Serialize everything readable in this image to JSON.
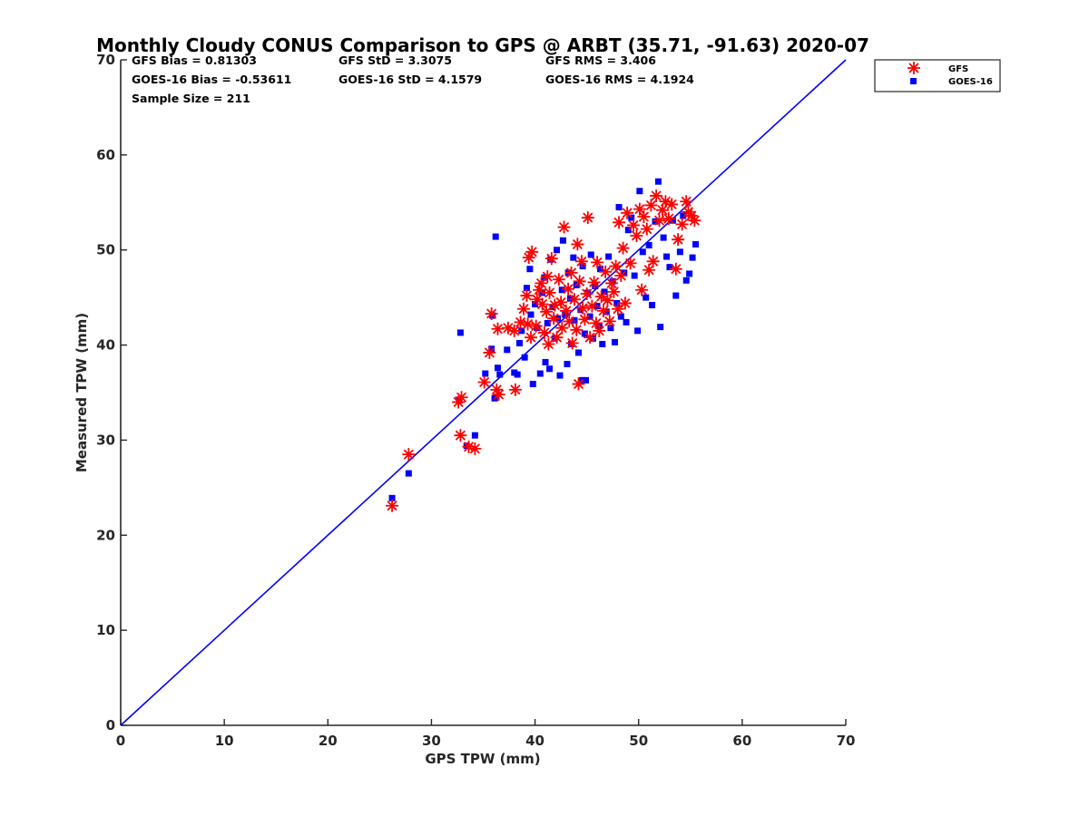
{
  "chart_data": {
    "type": "scatter",
    "title": "Monthly Cloudy CONUS Comparison to GPS @ ARBT (35.71, -91.63) 2020-07",
    "xlabel": "GPS TPW (mm)",
    "ylabel": "Measured TPW (mm)",
    "xlim": [
      0,
      70
    ],
    "ylim": [
      0,
      70
    ],
    "xticks": [
      "0",
      "10",
      "20",
      "30",
      "40",
      "50",
      "60",
      "70"
    ],
    "yticks": [
      "0",
      "10",
      "20",
      "30",
      "40",
      "50",
      "60",
      "70"
    ],
    "grid": false,
    "legend_position": "top-right, outside plot",
    "stats": {
      "gfs_bias": "GFS Bias = 0.81303",
      "gfs_std": "GFS StD = 3.3075",
      "gfs_rms": "GFS RMS = 3.406",
      "goes_bias": "GOES-16 Bias = -0.53611",
      "goes_std": "GOES-16 StD = 4.1579",
      "goes_rms": "GOES-16 RMS = 4.1924",
      "sample_size": "Sample Size = 211"
    },
    "reference_line": {
      "x": [
        0,
        70
      ],
      "y": [
        0,
        70
      ],
      "color": "#0000ff"
    },
    "series": [
      {
        "name": "GFS",
        "marker": "asterisk",
        "color": "#ff0000",
        "points": [
          [
            26.2,
            23.1
          ],
          [
            27.8,
            28.5
          ],
          [
            32.6,
            34.0
          ],
          [
            32.9,
            34.5
          ],
          [
            32.8,
            30.5
          ],
          [
            34.2,
            29.1
          ],
          [
            33.6,
            29.3
          ],
          [
            35.1,
            36.1
          ],
          [
            35.6,
            39.2
          ],
          [
            35.8,
            43.3
          ],
          [
            36.3,
            35.3
          ],
          [
            36.5,
            34.8
          ],
          [
            36.4,
            41.7
          ],
          [
            37.4,
            41.8
          ],
          [
            38.1,
            35.3
          ],
          [
            38.0,
            41.5
          ],
          [
            38.6,
            42.4
          ],
          [
            38.9,
            43.8
          ],
          [
            39.2,
            45.2
          ],
          [
            39.4,
            49.2
          ],
          [
            39.7,
            49.8
          ],
          [
            39.3,
            42.2
          ],
          [
            39.6,
            40.8
          ],
          [
            40.2,
            44.8
          ],
          [
            40.1,
            42.0
          ],
          [
            40.4,
            45.8
          ],
          [
            40.6,
            46.5
          ],
          [
            40.7,
            44.3
          ],
          [
            40.9,
            41.3
          ],
          [
            41.1,
            43.5
          ],
          [
            41.2,
            47.2
          ],
          [
            41.4,
            45.5
          ],
          [
            41.3,
            40.1
          ],
          [
            41.6,
            49.1
          ],
          [
            41.8,
            42.8
          ],
          [
            41.9,
            44.2
          ],
          [
            42.1,
            40.8
          ],
          [
            42.3,
            46.9
          ],
          [
            42.5,
            44.5
          ],
          [
            42.6,
            41.8
          ],
          [
            42.8,
            52.4
          ],
          [
            43.0,
            43.6
          ],
          [
            43.2,
            45.9
          ],
          [
            43.3,
            42.5
          ],
          [
            43.5,
            47.6
          ],
          [
            43.6,
            40.2
          ],
          [
            43.8,
            44.8
          ],
          [
            44.0,
            41.6
          ],
          [
            44.1,
            50.6
          ],
          [
            44.3,
            46.7
          ],
          [
            44.2,
            35.9
          ],
          [
            44.5,
            48.8
          ],
          [
            44.6,
            43.9
          ],
          [
            44.8,
            42.7
          ],
          [
            45.0,
            45.4
          ],
          [
            45.1,
            53.4
          ],
          [
            45.3,
            40.8
          ],
          [
            45.5,
            44.1
          ],
          [
            45.7,
            46.6
          ],
          [
            45.9,
            42.3
          ],
          [
            46.0,
            48.7
          ],
          [
            46.2,
            41.5
          ],
          [
            46.4,
            45.1
          ],
          [
            46.6,
            43.6
          ],
          [
            46.8,
            47.7
          ],
          [
            47.0,
            44.7
          ],
          [
            47.2,
            42.5
          ],
          [
            47.4,
            46.5
          ],
          [
            47.6,
            45.6
          ],
          [
            47.8,
            48.3
          ],
          [
            48.0,
            43.8
          ],
          [
            48.1,
            52.9
          ],
          [
            48.3,
            47.3
          ],
          [
            48.5,
            50.2
          ],
          [
            48.7,
            44.4
          ],
          [
            48.9,
            53.9
          ],
          [
            49.2,
            48.6
          ],
          [
            49.5,
            52.6
          ],
          [
            49.8,
            51.5
          ],
          [
            50.1,
            54.3
          ],
          [
            50.3,
            45.8
          ],
          [
            50.5,
            53.5
          ],
          [
            50.8,
            52.2
          ],
          [
            51.0,
            47.9
          ],
          [
            51.2,
            54.7
          ],
          [
            51.4,
            48.8
          ],
          [
            51.7,
            55.7
          ],
          [
            52.0,
            53.1
          ],
          [
            52.3,
            54.2
          ],
          [
            52.6,
            55.1
          ],
          [
            52.9,
            53.3
          ],
          [
            53.2,
            54.8
          ],
          [
            53.6,
            48.0
          ],
          [
            53.8,
            51.1
          ],
          [
            54.2,
            52.7
          ],
          [
            54.6,
            55.1
          ],
          [
            54.8,
            54.0
          ],
          [
            55.1,
            53.6
          ],
          [
            55.4,
            53.1
          ]
        ]
      },
      {
        "name": "GOES-16",
        "marker": "square",
        "color": "#0000ff",
        "points": [
          [
            26.2,
            23.9
          ],
          [
            27.8,
            26.5
          ],
          [
            32.7,
            34.2
          ],
          [
            32.8,
            41.3
          ],
          [
            33.4,
            29.4
          ],
          [
            34.2,
            30.5
          ],
          [
            35.2,
            37.0
          ],
          [
            35.8,
            39.6
          ],
          [
            35.9,
            43.1
          ],
          [
            36.2,
            51.4
          ],
          [
            36.1,
            34.4
          ],
          [
            36.4,
            37.6
          ],
          [
            36.6,
            36.9
          ],
          [
            37.3,
            39.5
          ],
          [
            38.0,
            37.1
          ],
          [
            38.3,
            36.9
          ],
          [
            38.5,
            40.2
          ],
          [
            38.7,
            41.5
          ],
          [
            39.0,
            38.7
          ],
          [
            39.2,
            46.0
          ],
          [
            39.5,
            48.0
          ],
          [
            39.6,
            43.2
          ],
          [
            39.8,
            35.9
          ],
          [
            40.0,
            44.3
          ],
          [
            40.2,
            41.8
          ],
          [
            40.5,
            37.0
          ],
          [
            40.7,
            45.5
          ],
          [
            40.9,
            47.1
          ],
          [
            41.0,
            38.2
          ],
          [
            41.2,
            42.3
          ],
          [
            41.4,
            37.5
          ],
          [
            41.5,
            49.0
          ],
          [
            41.7,
            44.0
          ],
          [
            41.9,
            40.7
          ],
          [
            42.1,
            50.0
          ],
          [
            42.2,
            42.8
          ],
          [
            42.4,
            36.8
          ],
          [
            42.6,
            45.8
          ],
          [
            42.7,
            51.0
          ],
          [
            42.9,
            43.2
          ],
          [
            43.1,
            38.0
          ],
          [
            43.2,
            47.6
          ],
          [
            43.4,
            44.9
          ],
          [
            43.5,
            40.1
          ],
          [
            43.7,
            49.2
          ],
          [
            43.8,
            42.6
          ],
          [
            44.0,
            46.3
          ],
          [
            44.2,
            39.2
          ],
          [
            44.4,
            43.7
          ],
          [
            44.5,
            36.3
          ],
          [
            44.6,
            48.3
          ],
          [
            44.8,
            41.2
          ],
          [
            44.9,
            36.3
          ],
          [
            45.1,
            45.5
          ],
          [
            45.3,
            43.0
          ],
          [
            45.4,
            49.5
          ],
          [
            45.6,
            40.7
          ],
          [
            45.8,
            46.2
          ],
          [
            46.0,
            44.1
          ],
          [
            46.2,
            42.0
          ],
          [
            46.3,
            48.0
          ],
          [
            46.5,
            40.1
          ],
          [
            46.7,
            45.6
          ],
          [
            46.9,
            43.5
          ],
          [
            47.1,
            49.3
          ],
          [
            47.3,
            41.8
          ],
          [
            47.5,
            46.7
          ],
          [
            47.7,
            40.3
          ],
          [
            47.9,
            44.4
          ],
          [
            48.1,
            54.5
          ],
          [
            48.3,
            43.0
          ],
          [
            48.6,
            47.6
          ],
          [
            48.8,
            42.4
          ],
          [
            49.0,
            52.1
          ],
          [
            49.3,
            53.4
          ],
          [
            49.6,
            47.3
          ],
          [
            49.9,
            41.5
          ],
          [
            50.1,
            56.2
          ],
          [
            50.4,
            49.8
          ],
          [
            50.7,
            45.0
          ],
          [
            51.0,
            50.5
          ],
          [
            51.3,
            44.2
          ],
          [
            51.6,
            53.0
          ],
          [
            51.9,
            57.2
          ],
          [
            52.1,
            41.9
          ],
          [
            52.4,
            51.3
          ],
          [
            52.7,
            49.3
          ],
          [
            53.0,
            48.2
          ],
          [
            53.3,
            53.1
          ],
          [
            53.6,
            45.2
          ],
          [
            54.0,
            49.8
          ],
          [
            54.3,
            53.6
          ],
          [
            54.6,
            46.8
          ],
          [
            54.9,
            47.5
          ],
          [
            55.2,
            49.2
          ],
          [
            55.5,
            50.6
          ]
        ]
      }
    ]
  }
}
